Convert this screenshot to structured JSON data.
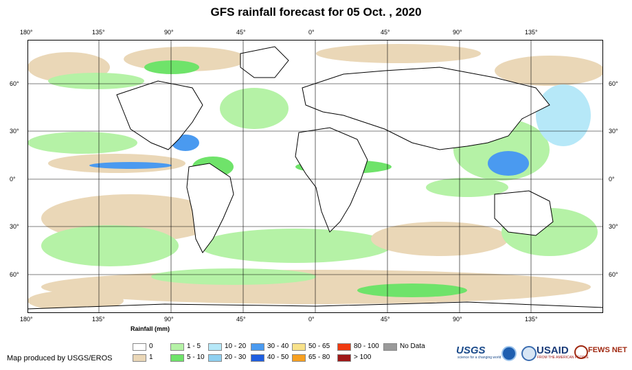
{
  "title": "GFS rainfall forecast for 05 Oct. , 2020",
  "longitude_ticks": [
    "180°",
    "135°",
    "90°",
    "45°",
    "0°",
    "45°",
    "90°",
    "135°"
  ],
  "latitude_ticks": [
    "60°",
    "30°",
    "0°",
    "30°",
    "60°"
  ],
  "legend": {
    "title": "Rainfall (mm)",
    "items": [
      {
        "label": "0",
        "color": "#ffffff"
      },
      {
        "label": "1",
        "color": "#ead7b7"
      },
      {
        "label": "1 - 5",
        "color": "#b5f2a6"
      },
      {
        "label": "5 - 10",
        "color": "#6fe36a"
      },
      {
        "label": "10 - 20",
        "color": "#b6e8f8"
      },
      {
        "label": "20 - 30",
        "color": "#8fd0f0"
      },
      {
        "label": "30 - 40",
        "color": "#4a9af0"
      },
      {
        "label": "40 - 50",
        "color": "#1f5fe0"
      },
      {
        "label": "50 - 65",
        "color": "#f8e28a"
      },
      {
        "label": "65 - 80",
        "color": "#f7a020"
      },
      {
        "label": "80 - 100",
        "color": "#f03a10"
      },
      {
        "label": "> 100",
        "color": "#a01818"
      },
      {
        "label": "No Data",
        "color": "#9a9a9a"
      }
    ]
  },
  "credit": "Map produced by USGS/EROS",
  "logos": {
    "usgs": "USGS",
    "usgs_tagline": "science for a changing world",
    "usaid": "USAID",
    "usaid_tagline": "FROM THE AMERICAN PEOPLE",
    "fews": "FEWS NET"
  }
}
